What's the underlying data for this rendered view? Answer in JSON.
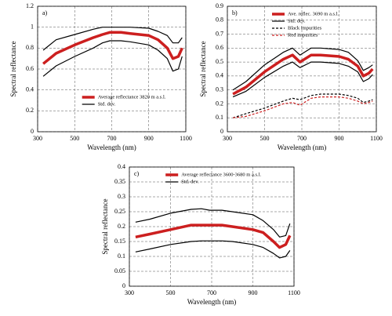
{
  "chart_data": [
    {
      "type": "line",
      "label": "a)",
      "xlabel": "Wavelength (nm)",
      "ylabel": "Spectral  reflectance",
      "x": [
        330,
        400,
        500,
        600,
        650,
        690,
        750,
        800,
        900,
        950,
        1000,
        1030,
        1060,
        1080
      ],
      "xlim": [
        300,
        1100
      ],
      "xticks": [
        300,
        500,
        700,
        900,
        1100
      ],
      "ylim": [
        0,
        1.2
      ],
      "yticks": [
        0,
        0.2,
        0.4,
        0.6,
        0.8,
        1,
        1.2
      ],
      "grid": true,
      "legend_position": "lower right",
      "series": [
        {
          "name": "Average reflectance 3820 m a.s.l.",
          "color": "#cc1f1f",
          "width": 3.5,
          "values": [
            0.65,
            0.75,
            0.83,
            0.9,
            0.93,
            0.95,
            0.95,
            0.94,
            0.92,
            0.88,
            0.8,
            0.7,
            0.72,
            0.8
          ]
        },
        {
          "name": "Std. dev.",
          "color": "#000000",
          "width": 1.2,
          "values": [
            0.78,
            0.88,
            0.93,
            0.98,
            1.0,
            1.0,
            1.0,
            1.0,
            0.99,
            0.96,
            0.92,
            0.85,
            0.85,
            0.9
          ]
        },
        {
          "color": "#000000",
          "width": 1.2,
          "values": [
            0.53,
            0.63,
            0.72,
            0.8,
            0.85,
            0.87,
            0.87,
            0.86,
            0.83,
            0.78,
            0.7,
            0.58,
            0.6,
            0.72
          ]
        }
      ]
    },
    {
      "type": "line",
      "label": "b)",
      "xlabel": "Wavelength (nm)",
      "ylabel": "Spectral  reflectance",
      "x": [
        330,
        400,
        500,
        600,
        650,
        690,
        750,
        800,
        900,
        950,
        1000,
        1030,
        1060,
        1080
      ],
      "xlim": [
        300,
        1100
      ],
      "xticks": [
        300,
        500,
        700,
        900,
        1100
      ],
      "ylim": [
        0,
        0.9
      ],
      "yticks": [
        0,
        0.1,
        0.2,
        0.3,
        0.4,
        0.5,
        0.6,
        0.7,
        0.8,
        0.9
      ],
      "grid": true,
      "legend_position": "upper center",
      "series": [
        {
          "name": "Ave. reflec. 3690 m a.s.l.",
          "color": "#cc1f1f",
          "width": 3.5,
          "values": [
            0.27,
            0.32,
            0.43,
            0.52,
            0.55,
            0.5,
            0.55,
            0.55,
            0.54,
            0.52,
            0.47,
            0.4,
            0.42,
            0.45
          ]
        },
        {
          "name": "Std. dev.",
          "color": "#000000",
          "width": 1.2,
          "values": [
            0.3,
            0.36,
            0.48,
            0.57,
            0.6,
            0.55,
            0.6,
            0.6,
            0.59,
            0.57,
            0.51,
            0.44,
            0.46,
            0.48
          ]
        },
        {
          "color": "#000000",
          "width": 1.2,
          "values": [
            0.25,
            0.29,
            0.39,
            0.47,
            0.5,
            0.46,
            0.5,
            0.5,
            0.49,
            0.47,
            0.43,
            0.36,
            0.38,
            0.41
          ]
        },
        {
          "name": "Black impurities",
          "color": "#000000",
          "width": 1.2,
          "dash": true,
          "values": [
            0.1,
            0.13,
            0.17,
            0.22,
            0.24,
            0.23,
            0.26,
            0.27,
            0.27,
            0.26,
            0.24,
            0.21,
            0.22,
            0.23
          ]
        },
        {
          "name": "Red impurities",
          "color": "#cc1f1f",
          "width": 1.2,
          "dash": true,
          "values": [
            0.1,
            0.11,
            0.15,
            0.2,
            0.21,
            0.19,
            0.24,
            0.25,
            0.25,
            0.24,
            0.22,
            0.2,
            0.21,
            0.22
          ]
        }
      ]
    },
    {
      "type": "line",
      "label": "c)",
      "xlabel": "Wavelength (nm)",
      "ylabel": "Spectral reflectance",
      "x": [
        330,
        400,
        500,
        600,
        650,
        690,
        750,
        800,
        900,
        950,
        1000,
        1030,
        1060,
        1080
      ],
      "xlim": [
        300,
        1100
      ],
      "xticks": [
        300,
        500,
        700,
        900,
        1100
      ],
      "ylim": [
        0,
        0.4
      ],
      "yticks": [
        0,
        0.05,
        0.1,
        0.15,
        0.2,
        0.25,
        0.3,
        0.35,
        0.4
      ],
      "grid": true,
      "legend_position": "upper left",
      "series": [
        {
          "name": "Average reflectance 3600-3680 m a.s.l.",
          "color": "#cc1f1f",
          "width": 3.5,
          "values": [
            0.165,
            0.175,
            0.19,
            0.205,
            0.205,
            0.205,
            0.205,
            0.2,
            0.19,
            0.18,
            0.15,
            0.13,
            0.14,
            0.17
          ]
        },
        {
          "name": "Std. dev.",
          "color": "#000000",
          "width": 1.2,
          "values": [
            0.215,
            0.225,
            0.245,
            0.258,
            0.26,
            0.255,
            0.255,
            0.25,
            0.24,
            0.22,
            0.19,
            0.165,
            0.17,
            0.21
          ]
        },
        {
          "color": "#000000",
          "width": 1.2,
          "values": [
            0.115,
            0.125,
            0.14,
            0.15,
            0.152,
            0.152,
            0.152,
            0.15,
            0.14,
            0.13,
            0.11,
            0.095,
            0.1,
            0.12
          ]
        }
      ]
    }
  ]
}
